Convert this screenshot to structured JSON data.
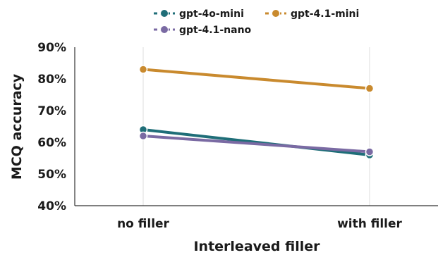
{
  "chart_data": {
    "type": "line",
    "xlabel": "Interleaved filler",
    "ylabel": "MCQ accuracy",
    "categories": [
      "no filler",
      "with filler"
    ],
    "ylim": [
      40,
      90
    ],
    "yticks": [
      "40%",
      "50%",
      "60%",
      "70%",
      "80%",
      "90%"
    ],
    "grid": "vertical",
    "legend_position": "top",
    "series": [
      {
        "name": "gpt-4o-mini",
        "values": [
          64,
          56
        ],
        "color": "#1f6e78"
      },
      {
        "name": "gpt-4.1-mini",
        "values": [
          83,
          77
        ],
        "color": "#c98a2e"
      },
      {
        "name": "gpt-4.1-nano",
        "values": [
          62,
          57
        ],
        "color": "#7a6aa3"
      }
    ]
  }
}
